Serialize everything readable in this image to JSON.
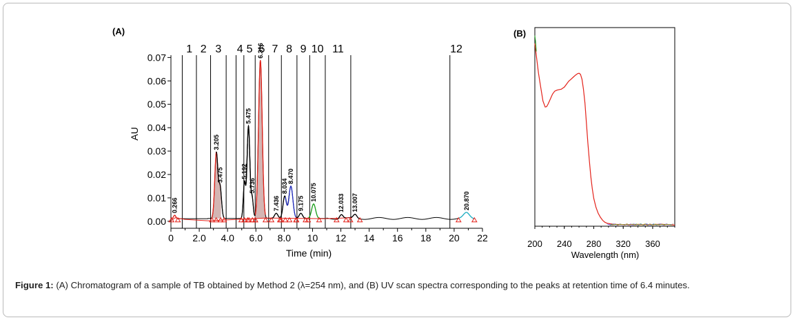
{
  "figure": {
    "caption_label": "Figure 1:",
    "caption_text": "(A) Chromatogram of a sample of TB obtained by Method 2 (λ=254 nm), and (B) UV scan spectra corresponding to the peaks at retention time of 6.4 minutes."
  },
  "chart_data": [
    {
      "panel": "(A)",
      "type": "line",
      "xlabel": "Time (min)",
      "ylabel": "AU",
      "xlim": [
        0,
        22
      ],
      "ylim": [
        -0.003,
        0.071
      ],
      "xticks": [
        0,
        2.0,
        4.0,
        6.0,
        8.0,
        10,
        12,
        14,
        16,
        18,
        20,
        22
      ],
      "xtick_labels": [
        "0",
        "2.0",
        "4.0",
        "6.0",
        "8.0",
        "10",
        "12",
        "14",
        "16",
        "18",
        "20",
        "22"
      ],
      "yticks": [
        0,
        0.01,
        0.02,
        0.03,
        0.04,
        0.05,
        0.06,
        0.07
      ],
      "ytick_labels": [
        "0.00",
        "0.01",
        "0.02",
        "0.03",
        "0.04",
        "0.05",
        "0.06",
        "0.07"
      ],
      "regions": [
        {
          "label": "1",
          "start": 0.8,
          "end": 1.8
        },
        {
          "label": "2",
          "start": 1.8,
          "end": 2.8
        },
        {
          "label": "3",
          "start": 2.8,
          "end": 3.9
        },
        {
          "label": "4",
          "start": 4.6,
          "end": 5.15
        },
        {
          "label": "5",
          "start": 5.15,
          "end": 5.95
        },
        {
          "label": "6",
          "start": 5.95,
          "end": 6.9
        },
        {
          "label": "7",
          "start": 6.9,
          "end": 7.8
        },
        {
          "label": "8",
          "start": 7.8,
          "end": 8.9
        },
        {
          "label": "9",
          "start": 8.9,
          "end": 9.8
        },
        {
          "label": "10",
          "start": 9.8,
          "end": 10.9
        },
        {
          "label": "11",
          "start": 10.9,
          "end": 12.7
        },
        {
          "label": "12",
          "start": 19.7,
          "end": 20.6
        }
      ],
      "region_boundaries": [
        0.8,
        1.8,
        2.8,
        3.9,
        4.6,
        5.15,
        5.95,
        6.9,
        7.8,
        8.9,
        9.8,
        10.9,
        12.7,
        19.7
      ],
      "peaks": [
        {
          "rt": 0.266,
          "label": "0.266",
          "height": 0.0015,
          "width": 0.08,
          "color": "#e32119",
          "fill": false
        },
        {
          "rt": 3.205,
          "label": "3.205",
          "height": 0.028,
          "width": 0.11,
          "color": "#e32119",
          "fill": true
        },
        {
          "rt": 3.475,
          "label": "3.475",
          "height": 0.013,
          "width": 0.1,
          "color": "#000000",
          "fill": false
        },
        {
          "rt": 5.192,
          "label": "5.192",
          "height": 0.0152,
          "width": 0.08,
          "color": "#000000",
          "fill": false
        },
        {
          "rt": 5.475,
          "label": "5.475",
          "height": 0.0395,
          "width": 0.1,
          "color": "#000000",
          "fill": false
        },
        {
          "rt": 5.736,
          "label": "5.736",
          "height": 0.0085,
          "width": 0.08,
          "color": "#000000",
          "fill": false
        },
        {
          "rt": 6.316,
          "label": "6.316",
          "height": 0.0675,
          "width": 0.13,
          "color": "#e32119",
          "fill": true
        },
        {
          "rt": 7.436,
          "label": "7.436",
          "height": 0.0022,
          "width": 0.12,
          "color": "#000000",
          "fill": false
        },
        {
          "rt": 8.034,
          "label": "8.034",
          "height": 0.0095,
          "width": 0.12,
          "color": "#000000",
          "fill": false
        },
        {
          "rt": 8.47,
          "label": "8.470",
          "height": 0.0138,
          "width": 0.14,
          "color": "#1f2bbf",
          "fill": false
        },
        {
          "rt": 9.175,
          "label": "9.175",
          "height": 0.0022,
          "width": 0.12,
          "color": "#000000",
          "fill": false
        },
        {
          "rt": 10.075,
          "label": "10.075",
          "height": 0.0062,
          "width": 0.14,
          "color": "#1fa51f",
          "fill": false
        },
        {
          "rt": 12.033,
          "label": "12.033",
          "height": 0.0018,
          "width": 0.12,
          "color": "#000000",
          "fill": false
        },
        {
          "rt": 13.007,
          "label": "13.007",
          "height": 0.0016,
          "width": 0.12,
          "color": "#000000",
          "fill": false
        },
        {
          "rt": 20.87,
          "label": "20.870",
          "height": 0.0022,
          "width": 0.2,
          "color": "#1fb3c8",
          "fill": false
        }
      ],
      "baseline": 0.0012
    },
    {
      "panel": "(B)",
      "type": "line",
      "xlabel": "Wavelength (nm)",
      "ylabel": "",
      "xlim": [
        200,
        390
      ],
      "xticks": [
        200,
        240,
        280,
        320,
        360
      ],
      "xtick_labels": [
        "200",
        "240",
        "280",
        "320",
        "360"
      ],
      "series": [
        {
          "color": "#e32119",
          "x": [
            200,
            202,
            205,
            208,
            211,
            214,
            216,
            218,
            221,
            224,
            227,
            230,
            233,
            236,
            238,
            240,
            243,
            246,
            249,
            252,
            255,
            258,
            260,
            262,
            264,
            266,
            268,
            270,
            272,
            274,
            276,
            278,
            280,
            283,
            286,
            289,
            292,
            295,
            298,
            302,
            306,
            310,
            320,
            330,
            340,
            350,
            360,
            370,
            380,
            390
          ],
          "y": [
            0.92,
            0.86,
            0.77,
            0.7,
            0.63,
            0.6,
            0.602,
            0.615,
            0.64,
            0.665,
            0.68,
            0.685,
            0.688,
            0.69,
            0.695,
            0.7,
            0.715,
            0.73,
            0.74,
            0.75,
            0.76,
            0.768,
            0.77,
            0.765,
            0.74,
            0.69,
            0.62,
            0.52,
            0.42,
            0.33,
            0.25,
            0.19,
            0.14,
            0.095,
            0.065,
            0.045,
            0.03,
            0.02,
            0.015,
            0.012,
            0.01,
            0.009,
            0.008,
            0.008,
            0.007,
            0.008,
            0.007,
            0.01,
            0.008,
            0.006
          ]
        }
      ]
    }
  ]
}
